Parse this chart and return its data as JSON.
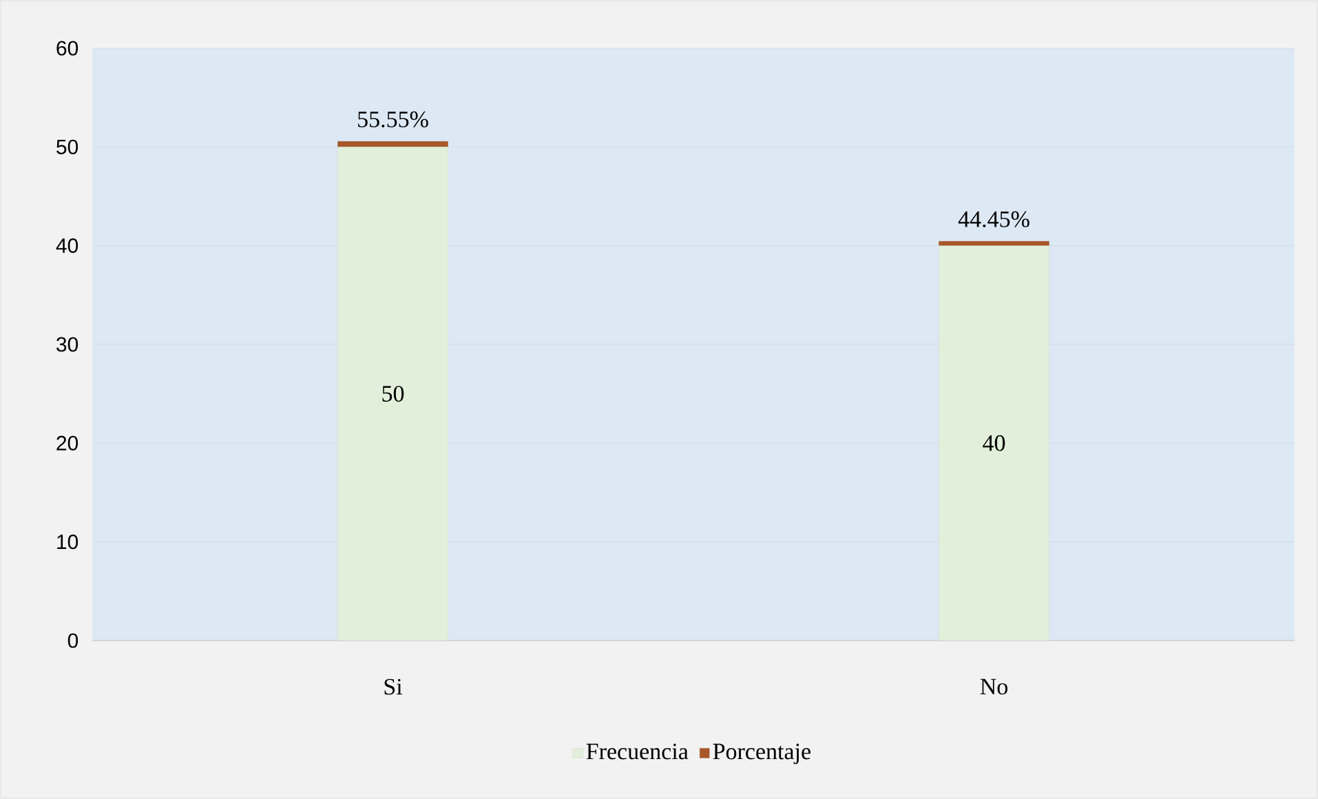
{
  "chart_data": {
    "type": "bar",
    "stacked": true,
    "categories": [
      "Si",
      "No"
    ],
    "series": [
      {
        "name": "Frecuencia",
        "color": "#e2efda",
        "values": [
          50,
          40
        ],
        "value_labels": [
          "50",
          "40"
        ]
      },
      {
        "name": "Porcentaje",
        "color": "#a9572a",
        "values": [
          0.5555,
          0.4445
        ],
        "value_labels": [
          "55.55%",
          "44.45%"
        ]
      }
    ],
    "ylim": [
      0,
      60
    ],
    "yticks": [
      0,
      10,
      20,
      30,
      40,
      50,
      60
    ],
    "grid": "y",
    "legend": "bottom"
  }
}
